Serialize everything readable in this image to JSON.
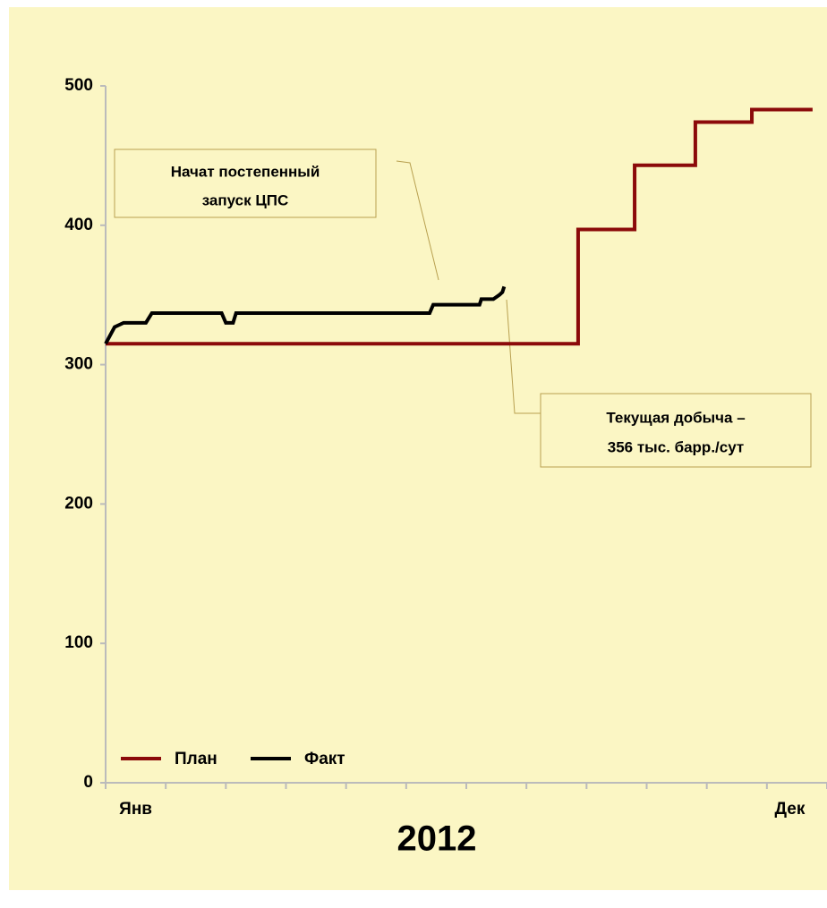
{
  "chart_data": {
    "type": "line",
    "categories": [
      "Янв",
      null,
      null,
      null,
      null,
      null,
      null,
      null,
      null,
      null,
      null,
      "Дек"
    ],
    "xlabel": "2012",
    "xlim": [
      0,
      12
    ],
    "ylim": [
      0,
      500
    ],
    "yticks": [
      0,
      100,
      200,
      300,
      400,
      500
    ],
    "step": true,
    "series": [
      {
        "name": "План",
        "color": "#8b0a0a",
        "x": [
          0,
          7.86,
          7.86,
          8.8,
          8.8,
          9.81,
          9.81,
          10.75,
          10.75,
          11.76
        ],
        "values": [
          315,
          315,
          397,
          397,
          443,
          443,
          474,
          474,
          483,
          483
        ]
      },
      {
        "name": "Факт",
        "color": "#000000",
        "x": [
          0,
          0.15,
          0.3,
          0.67,
          0.77,
          1.93,
          2.0,
          2.12,
          2.17,
          5.39,
          5.45,
          6.22,
          6.25,
          6.45,
          6.55,
          6.6,
          6.63
        ],
        "values": [
          315,
          327,
          330,
          330,
          337,
          337,
          330,
          330,
          337,
          337,
          343,
          343,
          347,
          347,
          350,
          352,
          356
        ]
      }
    ],
    "annotations": [
      {
        "lines": [
          "Начат постепенный",
          "запуск  ЦПС"
        ]
      },
      {
        "lines": [
          "Текущая добыча –",
          "356 тыс. барр./сут"
        ]
      }
    ]
  }
}
